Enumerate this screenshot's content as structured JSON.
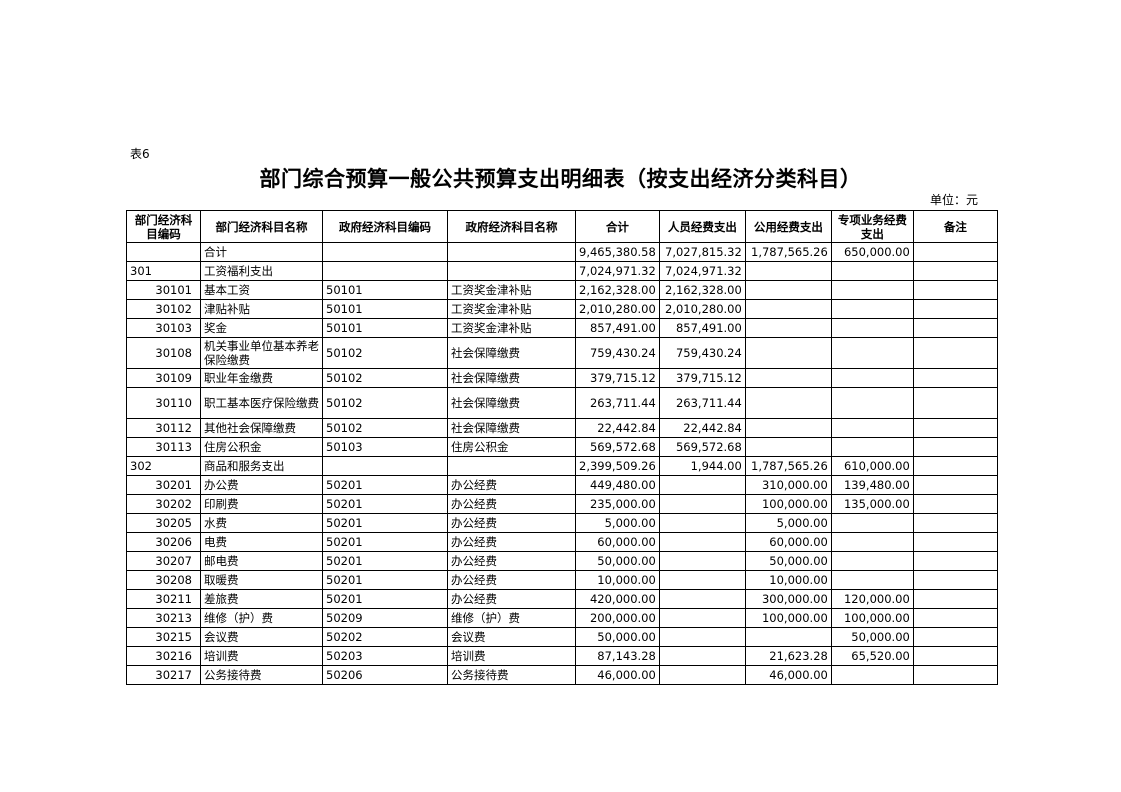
{
  "table_label": "表6",
  "title": "部门综合预算一般公共预算支出明细表（按支出经济分类科目）",
  "unit": "单位：元",
  "headers": [
    "部门经济科目编码",
    "部门经济科目名称",
    "政府经济科目编码",
    "政府经济科目名称",
    "合计",
    "人员经费支出",
    "公用经费支出",
    "专项业务经费支出",
    "备注"
  ],
  "rows": [
    [
      "",
      "合计",
      "",
      "",
      "9,465,380.58",
      "7,027,815.32",
      "1,787,565.26",
      "650,000.00",
      ""
    ],
    [
      "301",
      "工资福利支出",
      "",
      "",
      "7,024,971.32",
      "7,024,971.32",
      "",
      "",
      ""
    ],
    [
      "30101",
      "基本工资",
      "50101",
      "工资奖金津补贴",
      "2,162,328.00",
      "2,162,328.00",
      "",
      "",
      ""
    ],
    [
      "30102",
      "津贴补贴",
      "50101",
      "工资奖金津补贴",
      "2,010,280.00",
      "2,010,280.00",
      "",
      "",
      ""
    ],
    [
      "30103",
      "奖金",
      "50101",
      "工资奖金津补贴",
      "857,491.00",
      "857,491.00",
      "",
      "",
      ""
    ],
    [
      "30108",
      "机关事业单位基本养老保险缴费",
      "50102",
      "社会保障缴费",
      "759,430.24",
      "759,430.24",
      "",
      "",
      ""
    ],
    [
      "30109",
      "职业年金缴费",
      "50102",
      "社会保障缴费",
      "379,715.12",
      "379,715.12",
      "",
      "",
      ""
    ],
    [
      "30110",
      "职工基本医疗保险缴费",
      "50102",
      "社会保障缴费",
      "263,711.44",
      "263,711.44",
      "",
      "",
      ""
    ],
    [
      "30112",
      "其他社会保障缴费",
      "50102",
      "社会保障缴费",
      "22,442.84",
      "22,442.84",
      "",
      "",
      ""
    ],
    [
      "30113",
      "住房公积金",
      "50103",
      "住房公积金",
      "569,572.68",
      "569,572.68",
      "",
      "",
      ""
    ],
    [
      "302",
      "商品和服务支出",
      "",
      "",
      "2,399,509.26",
      "1,944.00",
      "1,787,565.26",
      "610,000.00",
      ""
    ],
    [
      "30201",
      "办公费",
      "50201",
      "办公经费",
      "449,480.00",
      "",
      "310,000.00",
      "139,480.00",
      ""
    ],
    [
      "30202",
      "印刷费",
      "50201",
      "办公经费",
      "235,000.00",
      "",
      "100,000.00",
      "135,000.00",
      ""
    ],
    [
      "30205",
      "水费",
      "50201",
      "办公经费",
      "5,000.00",
      "",
      "5,000.00",
      "",
      ""
    ],
    [
      "30206",
      "电费",
      "50201",
      "办公经费",
      "60,000.00",
      "",
      "60,000.00",
      "",
      ""
    ],
    [
      "30207",
      "邮电费",
      "50201",
      "办公经费",
      "50,000.00",
      "",
      "50,000.00",
      "",
      ""
    ],
    [
      "30208",
      "取暖费",
      "50201",
      "办公经费",
      "10,000.00",
      "",
      "10,000.00",
      "",
      ""
    ],
    [
      "30211",
      "差旅费",
      "50201",
      "办公经费",
      "420,000.00",
      "",
      "300,000.00",
      "120,000.00",
      ""
    ],
    [
      "30213",
      "维修（护）费",
      "50209",
      "维修（护）费",
      "200,000.00",
      "",
      "100,000.00",
      "100,000.00",
      ""
    ],
    [
      "30215",
      "会议费",
      "50202",
      "会议费",
      "50,000.00",
      "",
      "",
      "50,000.00",
      ""
    ],
    [
      "30216",
      "培训费",
      "50203",
      "培训费",
      "87,143.28",
      "",
      "21,623.28",
      "65,520.00",
      ""
    ],
    [
      "30217",
      "公务接待费",
      "50206",
      "公务接待费",
      "46,000.00",
      "",
      "46,000.00",
      "",
      ""
    ]
  ]
}
